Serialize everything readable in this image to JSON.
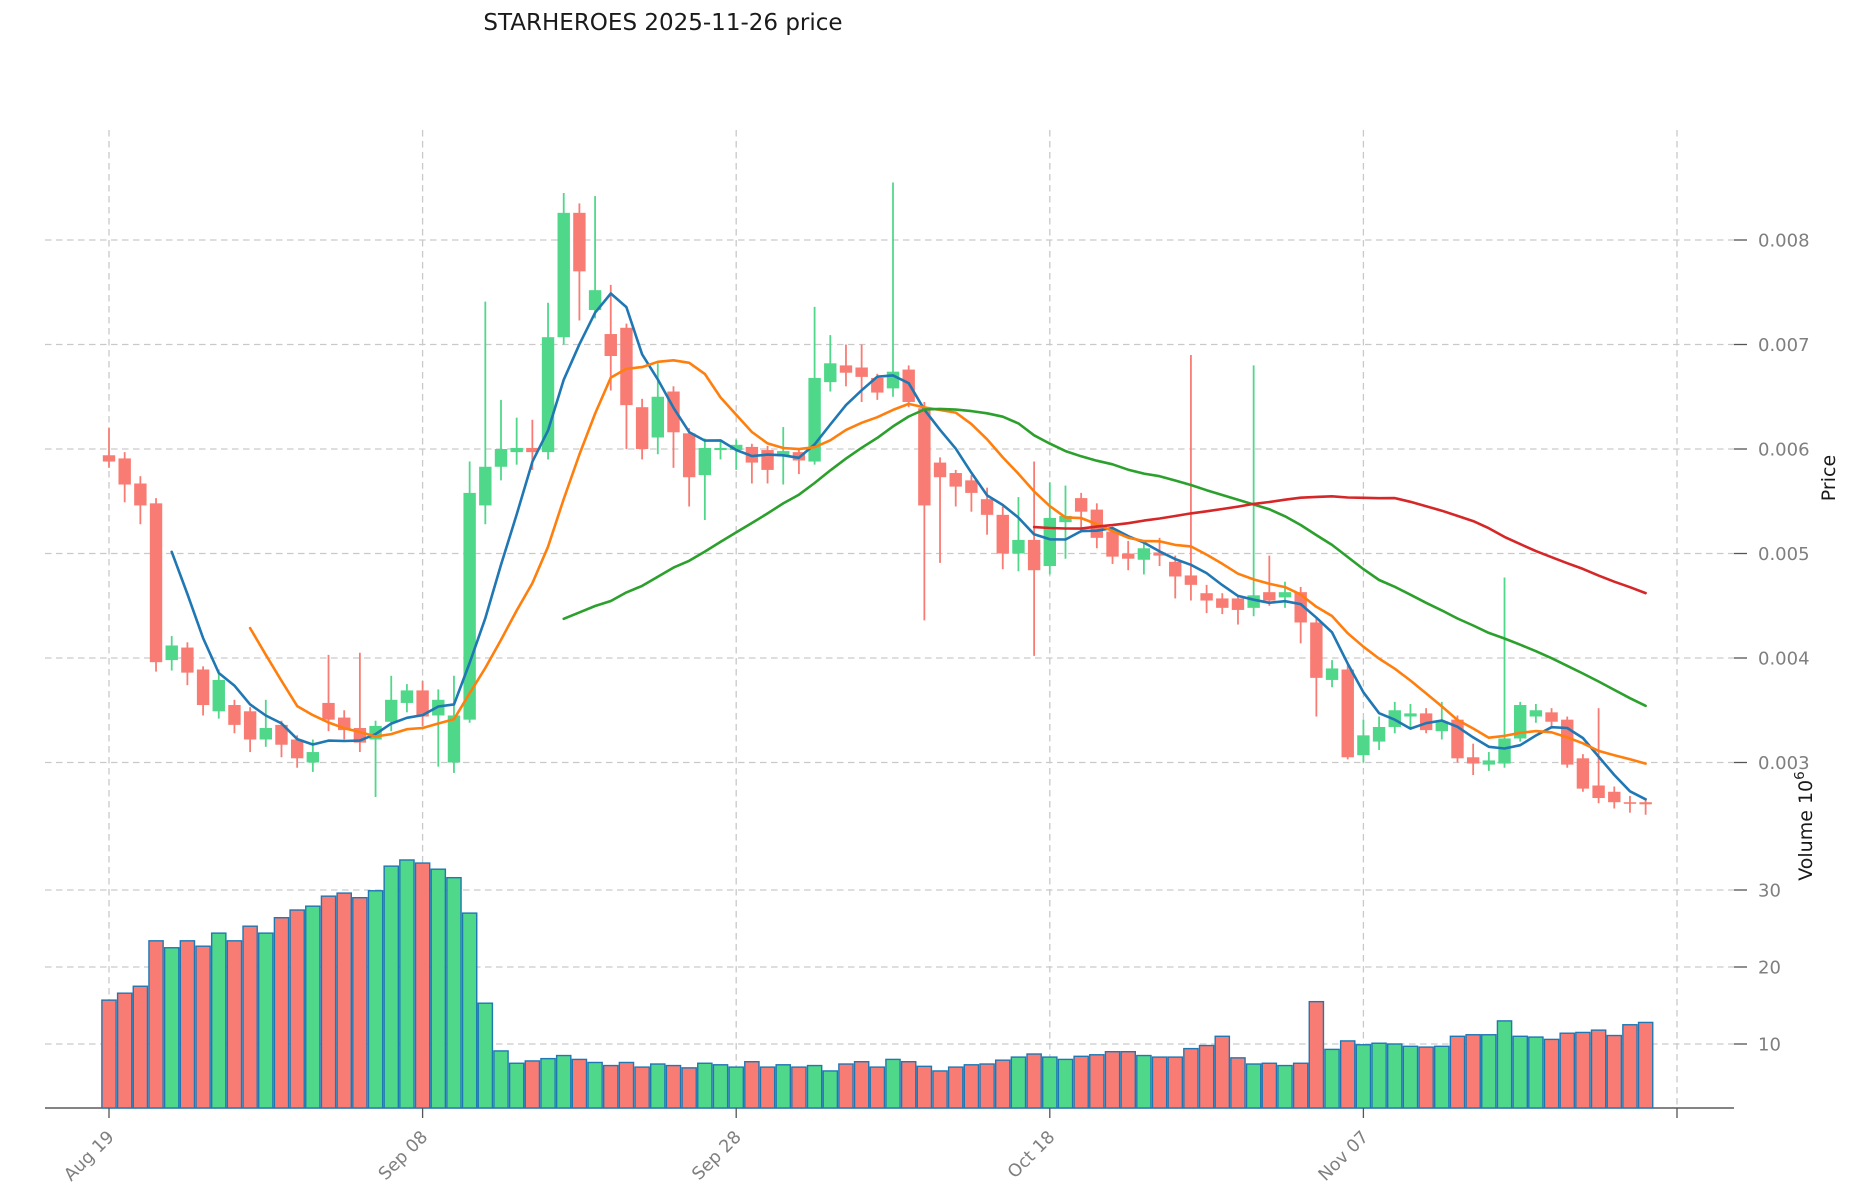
{
  "chart_data": {
    "type": "candlestick",
    "title": "STARHEROES  2025-11-26  price",
    "ylabel": "Price",
    "ylabel_volume": "Volume  10",
    "ylabel_volume_exp": "6",
    "grid": true,
    "price_ylim": [
      0.0023,
      0.00905
    ],
    "volume_ylim": [
      1.95,
      37.3
    ],
    "price_ticks": [
      {
        "value": 0.003,
        "label": "0.003"
      },
      {
        "value": 0.004,
        "label": "0.004"
      },
      {
        "value": 0.005,
        "label": "0.005"
      },
      {
        "value": 0.006,
        "label": "0.006"
      },
      {
        "value": 0.007,
        "label": "0.007"
      },
      {
        "value": 0.008,
        "label": "0.008"
      }
    ],
    "volume_ticks": [
      {
        "value": 10,
        "label": "10"
      },
      {
        "value": 20,
        "label": "20"
      },
      {
        "value": 30,
        "label": "30"
      }
    ],
    "x_ticks": [
      {
        "index": 0,
        "label": "Aug 19"
      },
      {
        "index": 20,
        "label": "Sep 08"
      },
      {
        "index": 40,
        "label": "Sep 28"
      },
      {
        "index": 60,
        "label": "Oct 18"
      },
      {
        "index": 80,
        "label": "Nov 07"
      },
      {
        "index": 100,
        "label": ""
      }
    ],
    "mav_windows": [
      5,
      10,
      30,
      60
    ],
    "mav_colors": [
      "#1f77b4",
      "#ff7f0e",
      "#2ca02c",
      "#d62728"
    ],
    "colors": {
      "up": "#50d88a",
      "down": "#f87c73",
      "volume_edge": "#1f77b4",
      "grid": "#c9c9c9",
      "tick_label": "#7f7f7f",
      "axis_label": "#1a1a1a",
      "title": "#1a1a1a",
      "spine": "#3a3a3a"
    },
    "ohlcv": [
      [
        "2025-08-19",
        0.00594,
        0.0062,
        0.00582,
        0.00588,
        15.7
      ],
      [
        "2025-08-20",
        0.00591,
        0.00597,
        0.00549,
        0.00566,
        16.6
      ],
      [
        "2025-08-21",
        0.00567,
        0.00574,
        0.00528,
        0.00546,
        17.5
      ],
      [
        "2025-08-22",
        0.00548,
        0.00553,
        0.00387,
        0.00396,
        23.4
      ],
      [
        "2025-08-23",
        0.00398,
        0.00421,
        0.00388,
        0.00412,
        22.5
      ],
      [
        "2025-08-24",
        0.0041,
        0.00415,
        0.00374,
        0.00386,
        23.4
      ],
      [
        "2025-08-25",
        0.00389,
        0.00392,
        0.00345,
        0.00355,
        22.7
      ],
      [
        "2025-08-26",
        0.00349,
        0.00389,
        0.00342,
        0.00379,
        24.4
      ],
      [
        "2025-08-27",
        0.00355,
        0.0036,
        0.00328,
        0.00336,
        23.4
      ],
      [
        "2025-08-28",
        0.00349,
        0.00353,
        0.0031,
        0.00322,
        25.3
      ],
      [
        "2025-08-29",
        0.00322,
        0.0036,
        0.00315,
        0.00333,
        24.4
      ],
      [
        "2025-08-30",
        0.00336,
        0.0034,
        0.00305,
        0.00317,
        26.4
      ],
      [
        "2025-08-31",
        0.00322,
        0.00326,
        0.00295,
        0.00304,
        27.4
      ],
      [
        "2025-09-01",
        0.003,
        0.00322,
        0.00291,
        0.0031,
        27.9
      ],
      [
        "2025-09-02",
        0.00357,
        0.00403,
        0.0033,
        0.00341,
        29.2
      ],
      [
        "2025-09-03",
        0.00343,
        0.0035,
        0.00322,
        0.00331,
        29.6
      ],
      [
        "2025-09-04",
        0.00333,
        0.00405,
        0.0031,
        0.00319,
        29.0
      ],
      [
        "2025-09-05",
        0.00322,
        0.0034,
        0.00267,
        0.00335,
        29.9
      ],
      [
        "2025-09-06",
        0.00339,
        0.00383,
        0.0033,
        0.0036,
        33.1
      ],
      [
        "2025-09-07",
        0.00357,
        0.00375,
        0.00348,
        0.00369,
        33.9
      ],
      [
        "2025-09-08",
        0.00369,
        0.00378,
        0.00335,
        0.00344,
        33.5
      ],
      [
        "2025-09-09",
        0.00345,
        0.0037,
        0.00296,
        0.0036,
        32.7
      ],
      [
        "2025-09-10",
        0.003,
        0.00383,
        0.0029,
        0.00345,
        31.6
      ],
      [
        "2025-09-11",
        0.00341,
        0.00588,
        0.00338,
        0.00558,
        27.0
      ],
      [
        "2025-09-12",
        0.00546,
        0.00741,
        0.00528,
        0.00583,
        15.3
      ],
      [
        "2025-09-13",
        0.00583,
        0.00647,
        0.0057,
        0.006,
        9.1
      ],
      [
        "2025-09-14",
        0.00597,
        0.0063,
        0.00585,
        0.00601,
        7.5
      ],
      [
        "2025-09-15",
        0.00601,
        0.00628,
        0.0058,
        0.00597,
        7.8
      ],
      [
        "2025-09-16",
        0.00597,
        0.0074,
        0.0059,
        0.00707,
        8.1
      ],
      [
        "2025-09-17",
        0.00707,
        0.00845,
        0.007,
        0.00826,
        8.5
      ],
      [
        "2025-09-18",
        0.00826,
        0.00835,
        0.00723,
        0.0077,
        8.0
      ],
      [
        "2025-09-19",
        0.00733,
        0.00842,
        0.00725,
        0.00752,
        7.6
      ],
      [
        "2025-09-20",
        0.0071,
        0.00757,
        0.00656,
        0.00689,
        7.2
      ],
      [
        "2025-09-21",
        0.00716,
        0.0072,
        0.006,
        0.00642,
        7.6
      ],
      [
        "2025-09-22",
        0.0064,
        0.00648,
        0.0059,
        0.006,
        7.0
      ],
      [
        "2025-09-23",
        0.00611,
        0.00682,
        0.00595,
        0.0065,
        7.4
      ],
      [
        "2025-09-24",
        0.00655,
        0.0066,
        0.00582,
        0.00616,
        7.2
      ],
      [
        "2025-09-25",
        0.00615,
        0.0062,
        0.00545,
        0.00573,
        6.9
      ],
      [
        "2025-09-26",
        0.00575,
        0.0061,
        0.00532,
        0.00601,
        7.5
      ],
      [
        "2025-09-27",
        0.00599,
        0.00608,
        0.0059,
        0.00601,
        7.3
      ],
      [
        "2025-09-28",
        0.00599,
        0.00609,
        0.0058,
        0.00604,
        7.0
      ],
      [
        "2025-09-29",
        0.00602,
        0.00605,
        0.00567,
        0.00587,
        7.7
      ],
      [
        "2025-09-30",
        0.00599,
        0.00603,
        0.00567,
        0.0058,
        7.0
      ],
      [
        "2025-10-01",
        0.00593,
        0.00621,
        0.00566,
        0.00598,
        7.3
      ],
      [
        "2025-10-02",
        0.00597,
        0.006,
        0.00576,
        0.00589,
        7.0
      ],
      [
        "2025-10-03",
        0.00588,
        0.00736,
        0.00585,
        0.00668,
        7.2
      ],
      [
        "2025-10-04",
        0.00664,
        0.00709,
        0.00655,
        0.00682,
        6.5
      ],
      [
        "2025-10-05",
        0.0068,
        0.007,
        0.0066,
        0.00673,
        7.4
      ],
      [
        "2025-10-06",
        0.00678,
        0.007,
        0.00645,
        0.00669,
        7.7
      ],
      [
        "2025-10-07",
        0.00668,
        0.00672,
        0.00647,
        0.00654,
        7.0
      ],
      [
        "2025-10-08",
        0.00658,
        0.00855,
        0.0065,
        0.00674,
        8.0
      ],
      [
        "2025-10-09",
        0.00676,
        0.0068,
        0.0064,
        0.00645,
        7.7
      ],
      [
        "2025-10-10",
        0.00639,
        0.00645,
        0.00436,
        0.00546,
        7.1
      ],
      [
        "2025-10-11",
        0.00587,
        0.00592,
        0.00491,
        0.00573,
        6.5
      ],
      [
        "2025-10-12",
        0.00577,
        0.0058,
        0.00545,
        0.00564,
        7.0
      ],
      [
        "2025-10-13",
        0.0057,
        0.00575,
        0.0054,
        0.00558,
        7.3
      ],
      [
        "2025-10-14",
        0.00552,
        0.00563,
        0.00518,
        0.00537,
        7.4
      ],
      [
        "2025-10-15",
        0.00537,
        0.00545,
        0.00485,
        0.005,
        7.9
      ],
      [
        "2025-10-16",
        0.005,
        0.00554,
        0.00483,
        0.00513,
        8.3
      ],
      [
        "2025-10-17",
        0.00513,
        0.00588,
        0.00402,
        0.00484,
        8.7
      ],
      [
        "2025-10-18",
        0.00488,
        0.00568,
        0.0048,
        0.00534,
        8.3
      ],
      [
        "2025-10-19",
        0.0053,
        0.00565,
        0.00495,
        0.00536,
        8.0
      ],
      [
        "2025-10-20",
        0.00553,
        0.00558,
        0.0052,
        0.0054,
        8.4
      ],
      [
        "2025-10-21",
        0.00542,
        0.00548,
        0.00505,
        0.00515,
        8.6
      ],
      [
        "2025-10-22",
        0.00521,
        0.00525,
        0.0049,
        0.00497,
        9.0
      ],
      [
        "2025-10-23",
        0.005,
        0.00512,
        0.00484,
        0.00495,
        9.0
      ],
      [
        "2025-10-24",
        0.00494,
        0.00512,
        0.0048,
        0.00505,
        8.5
      ],
      [
        "2025-10-25",
        0.00501,
        0.00515,
        0.00488,
        0.00498,
        8.3
      ],
      [
        "2025-10-26",
        0.00492,
        0.00498,
        0.00457,
        0.00478,
        8.3
      ],
      [
        "2025-10-27",
        0.00479,
        0.0069,
        0.00455,
        0.0047,
        9.4
      ],
      [
        "2025-10-28",
        0.00462,
        0.0047,
        0.00443,
        0.00455,
        9.8
      ],
      [
        "2025-10-29",
        0.00457,
        0.00462,
        0.00442,
        0.00448,
        11.0
      ],
      [
        "2025-10-30",
        0.00457,
        0.0046,
        0.00432,
        0.00446,
        8.2
      ],
      [
        "2025-10-31",
        0.00448,
        0.0068,
        0.0044,
        0.0046,
        7.4
      ],
      [
        "2025-11-01",
        0.00463,
        0.00498,
        0.0045,
        0.00455,
        7.5
      ],
      [
        "2025-11-02",
        0.00458,
        0.00473,
        0.00448,
        0.00463,
        7.2
      ],
      [
        "2025-11-03",
        0.00463,
        0.00468,
        0.00414,
        0.00434,
        7.5
      ],
      [
        "2025-11-04",
        0.00434,
        0.00438,
        0.00344,
        0.00381,
        15.5
      ],
      [
        "2025-11-05",
        0.00379,
        0.00398,
        0.00372,
        0.0039,
        9.3
      ],
      [
        "2025-11-06",
        0.00389,
        0.00394,
        0.00303,
        0.00305,
        10.4
      ],
      [
        "2025-11-07",
        0.00307,
        0.00341,
        0.003,
        0.00326,
        9.9
      ],
      [
        "2025-11-08",
        0.0032,
        0.00344,
        0.00312,
        0.00334,
        10.1
      ],
      [
        "2025-11-09",
        0.00334,
        0.00358,
        0.00328,
        0.0035,
        10.0
      ],
      [
        "2025-11-11",
        0.00344,
        0.00356,
        0.00332,
        0.00347,
        9.7
      ],
      [
        "2025-11-12",
        0.00347,
        0.00352,
        0.00328,
        0.00331,
        9.6
      ],
      [
        "2025-11-13",
        0.0033,
        0.00358,
        0.00322,
        0.00339,
        9.7
      ],
      [
        "2025-11-14",
        0.00341,
        0.00345,
        0.003,
        0.00304,
        11.0
      ],
      [
        "2025-11-15",
        0.00305,
        0.00318,
        0.00288,
        0.00299,
        11.2
      ],
      [
        "2025-11-16",
        0.00298,
        0.0031,
        0.00292,
        0.00302,
        11.2
      ],
      [
        "2025-11-17",
        0.00299,
        0.00477,
        0.00295,
        0.00323,
        13.0
      ],
      [
        "2025-11-18",
        0.00323,
        0.00358,
        0.0032,
        0.00355,
        11.0
      ],
      [
        "2025-11-19",
        0.00344,
        0.00356,
        0.00338,
        0.0035,
        10.9
      ],
      [
        "2025-11-20",
        0.00348,
        0.00352,
        0.00334,
        0.00339,
        10.6
      ],
      [
        "2025-11-21",
        0.00341,
        0.00344,
        0.00295,
        0.00298,
        11.4
      ],
      [
        "2025-11-22",
        0.00304,
        0.00308,
        0.00272,
        0.00275,
        11.5
      ],
      [
        "2025-11-23",
        0.00278,
        0.00352,
        0.00261,
        0.00266,
        11.8
      ],
      [
        "2025-11-24",
        0.00272,
        0.00277,
        0.00256,
        0.00262,
        11.1
      ],
      [
        "2025-11-25",
        0.00262,
        0.00268,
        0.00252,
        0.00261,
        12.5
      ],
      [
        "2025-11-26",
        0.00262,
        0.00266,
        0.0025,
        0.0026,
        12.8
      ]
    ]
  }
}
